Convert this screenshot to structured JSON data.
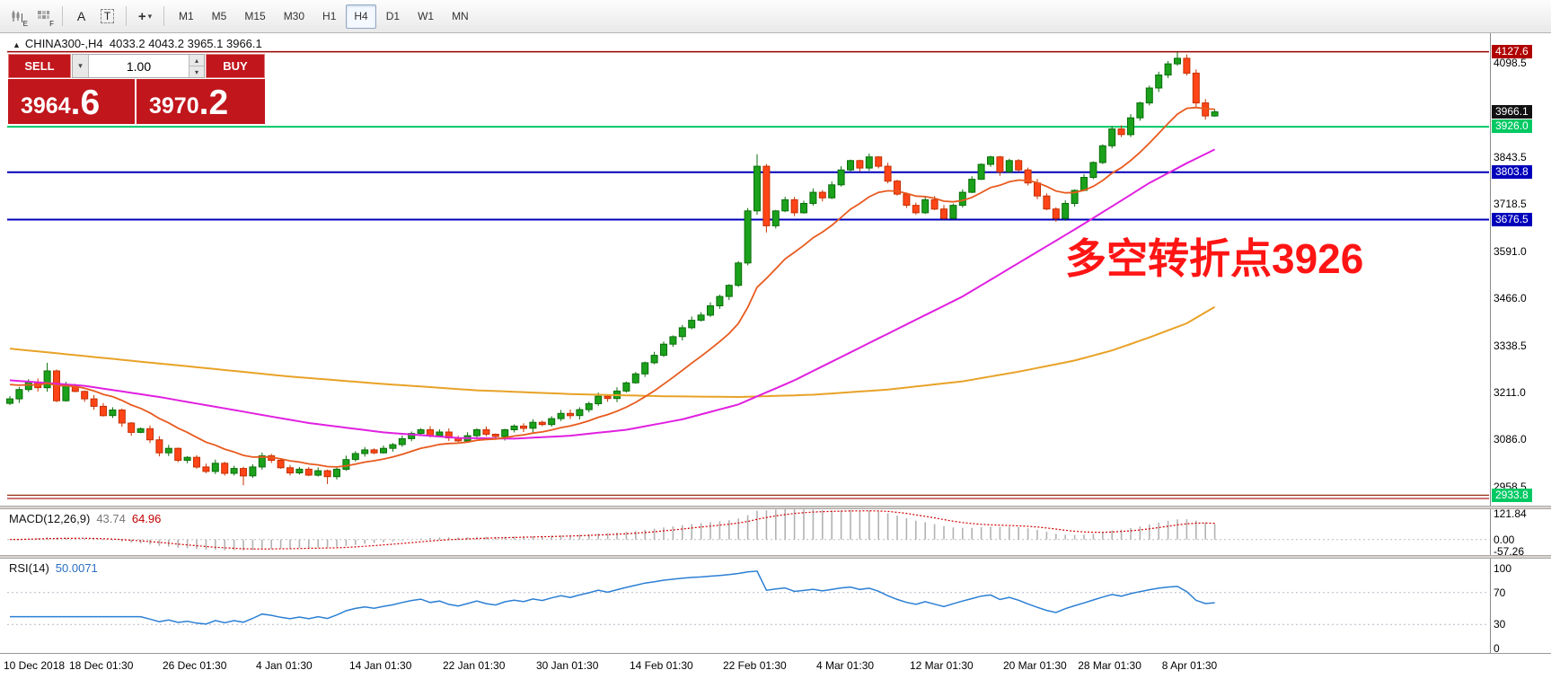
{
  "colors": {
    "up_fill": "#1ba11b",
    "up_stroke": "#0a6e0a",
    "down_fill": "#ff4518",
    "down_stroke": "#c53000",
    "ma_fast": "#e85a1e",
    "ma_mid": "#e020e0",
    "ma_slow": "#e8a227",
    "macd_hist": "#b2b2b2",
    "macd_signal": "#d40000",
    "rsi_line": "#2b7fd4",
    "trade_red": "#c0161c",
    "annotation_red": "#ff1414"
  },
  "toolbar": {
    "icons": {
      "e": "E",
      "f": "F",
      "a": "A",
      "t": "T",
      "crosshair": "+",
      "caret": "▾"
    },
    "timeframes": [
      "M1",
      "M5",
      "M15",
      "M30",
      "H1",
      "H4",
      "D1",
      "W1",
      "MN"
    ],
    "active_timeframe": "H4"
  },
  "chart_header": {
    "expand_icon": "▲",
    "symbol": "CHINA300-,H4",
    "ohlc": "4033.2 4043.2 3965.1 3966.1"
  },
  "trade_panel": {
    "sell_label": "SELL",
    "buy_label": "BUY",
    "volume": "1.00",
    "dropdown_icon": "▾",
    "up_icon": "▴",
    "down_icon": "▾",
    "sell_price_base": "3964",
    "sell_price_last": ".6",
    "buy_price_base": "3970",
    "buy_price_last": ".2"
  },
  "annotation": {
    "text": "多空转折点3926"
  },
  "levels": [
    {
      "price": 4127.6,
      "color": "#990000",
      "w": 1.5
    },
    {
      "price": 3926.0,
      "color": "#00c963",
      "w": 2
    },
    {
      "price": 3803.8,
      "color": "#0000bb",
      "w": 2
    },
    {
      "price": 3676.5,
      "color": "#0000bb",
      "w": 2
    },
    {
      "price": 2936.0,
      "color": "#993016",
      "w": 1.2
    },
    {
      "price": 2927.5,
      "color": "#b22222",
      "w": 1.2
    }
  ],
  "price_axis": [
    {
      "text": "4127.6",
      "v": 4127.6,
      "bg": "#b00000"
    },
    {
      "text": "4098.5",
      "v": 4098.5
    },
    {
      "text": "3966.1",
      "v": 3966.1,
      "bg": "#111111"
    },
    {
      "text": "3926.0",
      "v": 3926.0,
      "bg": "#00c963"
    },
    {
      "text": "3843.5",
      "v": 3843.5
    },
    {
      "text": "3803.8",
      "v": 3803.8,
      "bg": "#0000bb"
    },
    {
      "text": "3718.5",
      "v": 3718.5
    },
    {
      "text": "3676.5",
      "v": 3676.5,
      "bg": "#0000bb"
    },
    {
      "text": "3591.0",
      "v": 3591.0
    },
    {
      "text": "3466.0",
      "v": 3466.0
    },
    {
      "text": "3338.5",
      "v": 3338.5
    },
    {
      "text": "3211.0",
      "v": 3211.0
    },
    {
      "text": "3086.0",
      "v": 3086.0
    },
    {
      "text": "2958.5",
      "v": 2958.5
    },
    {
      "text": "2933.8",
      "v": 2933.8,
      "bg": "#00c963"
    }
  ],
  "macd": {
    "label": "MACD(12,26,9)",
    "value_main": "43.74",
    "value_signal": "64.96",
    "axis": [
      {
        "text": "121.84",
        "v": 121.84
      },
      {
        "text": "0.00",
        "v": 0
      },
      {
        "text": "-57.26",
        "v": -57.26
      }
    ]
  },
  "rsi": {
    "label": "RSI(14)",
    "value": "50.0071",
    "axis": [
      {
        "text": "100",
        "v": 100
      },
      {
        "text": "70",
        "v": 70
      },
      {
        "text": "30",
        "v": 30
      },
      {
        "text": "0",
        "v": 0
      }
    ],
    "levels": [
      70,
      30
    ]
  },
  "time_axis": [
    {
      "text": "10 Dec 2018",
      "i": 0
    },
    {
      "text": "18 Dec 01:30",
      "i": 10
    },
    {
      "text": "26 Dec 01:30",
      "i": 20
    },
    {
      "text": "4 Jan 01:30",
      "i": 30
    },
    {
      "text": "14 Jan 01:30",
      "i": 40
    },
    {
      "text": "22 Jan 01:30",
      "i": 50
    },
    {
      "text": "30 Jan 01:30",
      "i": 60
    },
    {
      "text": "14 Feb 01:30",
      "i": 70
    },
    {
      "text": "22 Feb 01:30",
      "i": 80
    },
    {
      "text": "4 Mar 01:30",
      "i": 90
    },
    {
      "text": "12 Mar 01:30",
      "i": 100
    },
    {
      "text": "20 Mar 01:30",
      "i": 110
    },
    {
      "text": "28 Mar 01:30",
      "i": 118
    },
    {
      "text": "8 Apr 01:30",
      "i": 127
    }
  ],
  "chart_data": {
    "type": "candlestick",
    "symbol": "CHINA300-",
    "timeframe": "H4",
    "ylim": [
      2925,
      4170
    ],
    "closes": [
      3195,
      3220,
      3240,
      3225,
      3270,
      3190,
      3230,
      3215,
      3195,
      3175,
      3150,
      3165,
      3130,
      3105,
      3115,
      3085,
      3050,
      3062,
      3030,
      3038,
      3012,
      3000,
      3022,
      2995,
      3008,
      2988,
      3012,
      3042,
      3030,
      3010,
      2996,
      3006,
      2990,
      3002,
      2986,
      3006,
      3032,
      3048,
      3058,
      3050,
      3062,
      3072,
      3088,
      3102,
      3112,
      3096,
      3106,
      3090,
      3082,
      3096,
      3112,
      3100,
      3094,
      3112,
      3122,
      3116,
      3132,
      3126,
      3142,
      3156,
      3150,
      3166,
      3182,
      3202,
      3196,
      3216,
      3238,
      3262,
      3292,
      3312,
      3342,
      3362,
      3386,
      3406,
      3420,
      3445,
      3470,
      3500,
      3560,
      3700,
      3820,
      3660,
      3700,
      3730,
      3695,
      3720,
      3750,
      3735,
      3770,
      3810,
      3835,
      3815,
      3845,
      3820,
      3780,
      3745,
      3715,
      3695,
      3730,
      3705,
      3680,
      3715,
      3750,
      3785,
      3825,
      3845,
      3805,
      3835,
      3810,
      3775,
      3740,
      3705,
      3680,
      3720,
      3755,
      3790,
      3830,
      3875,
      3920,
      3905,
      3950,
      3990,
      4030,
      4065,
      4095,
      4110,
      4070,
      3990,
      3955,
      3966.1
    ],
    "high_overrides": {
      "4": 3292,
      "80": 3852,
      "125": 4127.6
    },
    "low_overrides": {
      "25": 2963,
      "34": 2966,
      "81": 3642
    },
    "ma_mid_points": [
      [
        0,
        3245
      ],
      [
        8,
        3230
      ],
      [
        16,
        3200
      ],
      [
        24,
        3165
      ],
      [
        32,
        3130
      ],
      [
        40,
        3105
      ],
      [
        48,
        3090
      ],
      [
        54,
        3088
      ],
      [
        60,
        3096
      ],
      [
        66,
        3112
      ],
      [
        72,
        3140
      ],
      [
        78,
        3180
      ],
      [
        84,
        3245
      ],
      [
        90,
        3320
      ],
      [
        96,
        3395
      ],
      [
        102,
        3470
      ],
      [
        108,
        3560
      ],
      [
        114,
        3650
      ],
      [
        118,
        3712
      ],
      [
        122,
        3775
      ],
      [
        126,
        3828
      ],
      [
        129,
        3865
      ]
    ],
    "ma_slow_points": [
      [
        0,
        3330
      ],
      [
        10,
        3305
      ],
      [
        20,
        3280
      ],
      [
        30,
        3255
      ],
      [
        40,
        3235
      ],
      [
        50,
        3218
      ],
      [
        60,
        3208
      ],
      [
        70,
        3202
      ],
      [
        78,
        3200
      ],
      [
        86,
        3206
      ],
      [
        94,
        3220
      ],
      [
        102,
        3242
      ],
      [
        108,
        3268
      ],
      [
        114,
        3298
      ],
      [
        118,
        3325
      ],
      [
        122,
        3360
      ],
      [
        126,
        3398
      ],
      [
        129,
        3442
      ]
    ]
  }
}
